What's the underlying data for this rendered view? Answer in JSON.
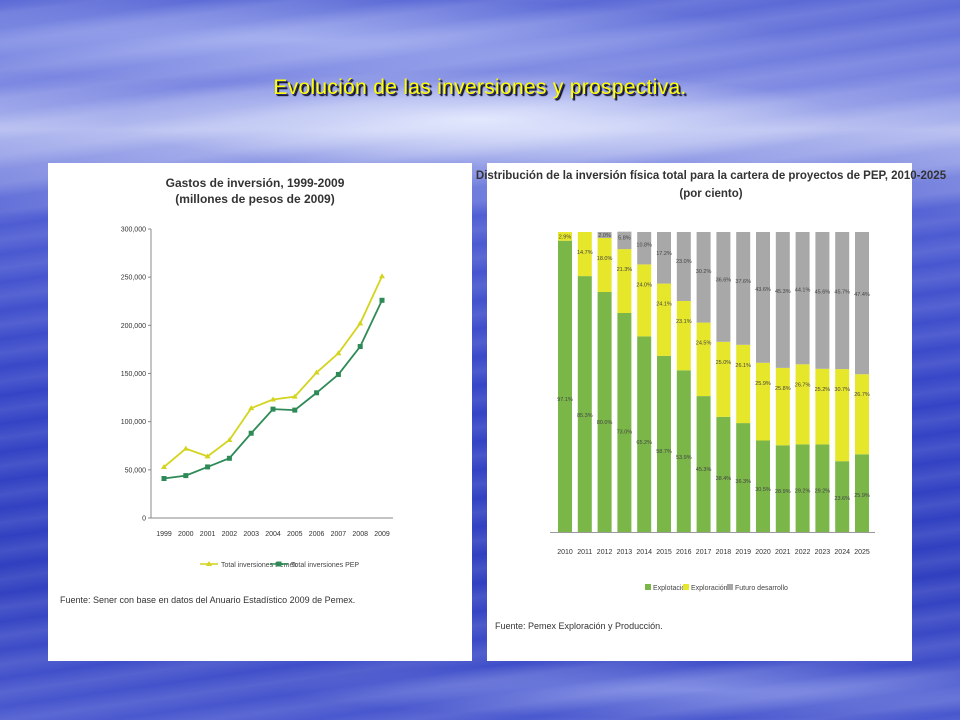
{
  "slide": {
    "title": "Evolución de las inversiones y prospectiva."
  },
  "colors": {
    "pemex_line": "#d4d41e",
    "pep_line": "#2e8b57",
    "exploitation": "#7ab648",
    "exploration": "#e6e62a",
    "future": "#a8a8a8"
  },
  "chart_data": [
    {
      "type": "line",
      "title": "Gastos de inversión, 1999-2009",
      "subtitle": "(millones de pesos de 2009)",
      "x": [
        "1999",
        "2000",
        "2001",
        "2002",
        "2003",
        "2004",
        "2005",
        "2006",
        "2007",
        "2008",
        "2009"
      ],
      "ylim": [
        0,
        300000
      ],
      "yticks": [
        "0",
        "50,000",
        "100,000",
        "150,000",
        "200,000",
        "250,000",
        "300,000"
      ],
      "series": [
        {
          "name": "Total inversiones Pemex",
          "values": [
            53000,
            72000,
            64000,
            81000,
            114000,
            123000,
            126000,
            151000,
            171000,
            202000,
            251000
          ]
        },
        {
          "name": "Total inversiones PEP",
          "values": [
            41000,
            44000,
            53000,
            62000,
            88000,
            113000,
            112000,
            130000,
            149000,
            178000,
            226000
          ]
        }
      ],
      "source": "Fuente: Sener con base en datos del Anuario Estadístico 2009 de Pemex."
    },
    {
      "type": "bar",
      "stacked": true,
      "title": "Distribución de la inversión física total para la cartera de proyectos de PEP, 2010-2025",
      "subtitle": "(por ciento)",
      "categories": [
        "2010",
        "2011",
        "2012",
        "2013",
        "2014",
        "2015",
        "2016",
        "2017",
        "2018",
        "2019",
        "2020",
        "2021",
        "2022",
        "2023",
        "2024",
        "2025"
      ],
      "series": [
        {
          "name": "Explotación",
          "values": [
            97.1,
            85.3,
            80.0,
            73.0,
            65.2,
            58.7,
            53.9,
            45.3,
            38.4,
            36.3,
            30.5,
            28.9,
            29.2,
            29.2,
            23.6,
            25.9
          ],
          "labels": [
            "97.1%",
            "85.3%",
            "80.0%",
            "73.0%",
            "65.2%",
            "58.7%",
            "53.9%",
            "45.3%",
            "38.4%",
            "36.3%",
            "30.5%",
            "28.9%",
            "29.2%",
            "29.2%",
            "23.6%",
            "25.9%"
          ]
        },
        {
          "name": "Exploración",
          "values": [
            2.9,
            14.7,
            18.0,
            21.3,
            24.0,
            24.1,
            23.1,
            24.5,
            25.0,
            26.1,
            25.9,
            25.8,
            26.7,
            25.2,
            30.7,
            26.7
          ],
          "labels": [
            "2.9%",
            "14.7%",
            "18.0%",
            "21.3%",
            "24.0%",
            "24.1%",
            "23.1%",
            "24.5%",
            "25.0%",
            "26.1%",
            "25.9%",
            "25.8%",
            "26.7%",
            "25.2%",
            "30.7%",
            "26.7%"
          ]
        },
        {
          "name": "Futuro desarrollo",
          "values": [
            0,
            0,
            2.0,
            5.8,
            10.8,
            17.2,
            23.0,
            30.2,
            36.6,
            37.6,
            43.6,
            45.3,
            44.1,
            45.6,
            45.7,
            47.4
          ],
          "labels": [
            "",
            "",
            "2.0%",
            "5.8%",
            "10.8%",
            "17.2%",
            "23.0%",
            "30.2%",
            "36.6%",
            "37.6%",
            "43.6%",
            "45.3%",
            "44.1%",
            "45.6%",
            "45.7%",
            "47.4%"
          ]
        }
      ],
      "source": "Fuente: Pemex Exploración y Producción."
    }
  ]
}
